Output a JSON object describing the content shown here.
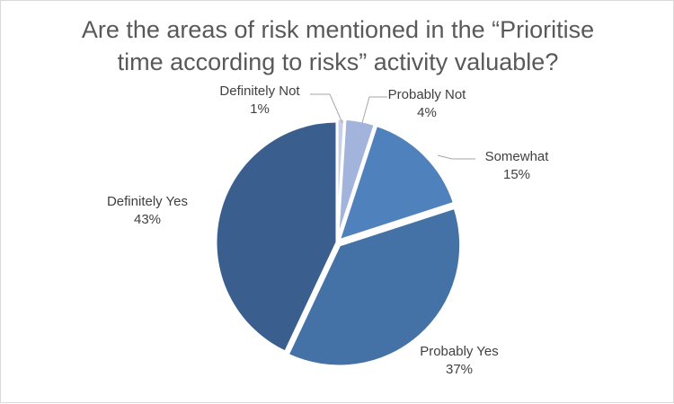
{
  "chart_data": {
    "type": "pie",
    "title_line1": "Are the areas of risk mentioned in the “Prioritise",
    "title_line2": "time according to risks” activity valuable?",
    "slices": [
      {
        "label": "Definitely Not",
        "value": 1,
        "pct_label": "1%",
        "color": "#c7d0e6"
      },
      {
        "label": "Probably Not",
        "value": 4,
        "pct_label": "4%",
        "color": "#a3b4dc"
      },
      {
        "label": "Somewhat",
        "value": 15,
        "pct_label": "15%",
        "color": "#4f81bd"
      },
      {
        "label": "Probably Yes",
        "value": 37,
        "pct_label": "37%",
        "color": "#4472a7"
      },
      {
        "label": "Definitely Yes",
        "value": 43,
        "pct_label": "43%",
        "color": "#3a5f8e"
      }
    ],
    "legend": "none"
  }
}
